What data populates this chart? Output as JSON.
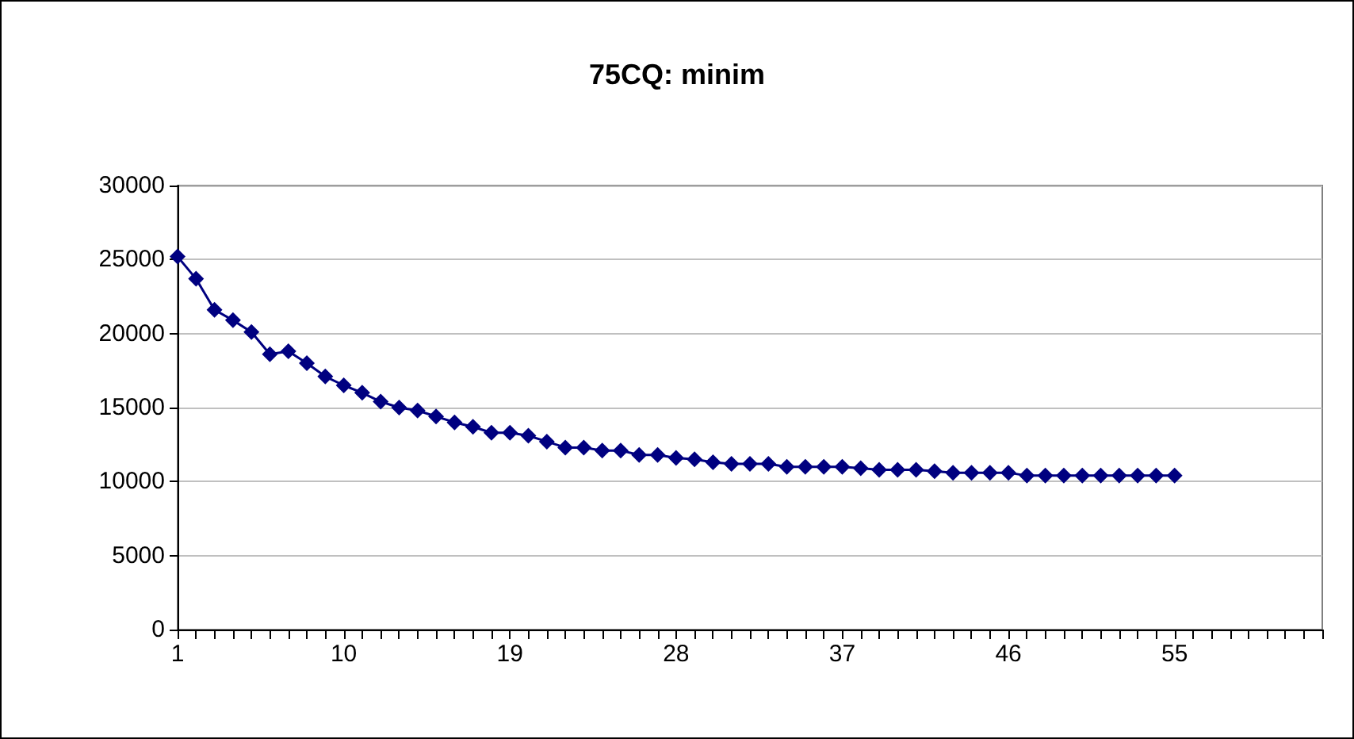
{
  "chart_data": {
    "type": "line",
    "title": "75CQ: minim",
    "categories": [
      "1",
      null,
      null,
      null,
      null,
      null,
      null,
      null,
      null,
      "10",
      null,
      null,
      null,
      null,
      null,
      null,
      null,
      null,
      "19",
      null,
      null,
      null,
      null,
      null,
      null,
      null,
      null,
      "28",
      null,
      null,
      null,
      null,
      null,
      null,
      null,
      null,
      "37",
      null,
      null,
      null,
      null,
      null,
      null,
      null,
      null,
      "46",
      null,
      null,
      null,
      null,
      null,
      null,
      null,
      null,
      "55",
      null,
      null,
      null,
      null,
      null,
      null,
      null,
      null
    ],
    "series": [
      {
        "color": "#000080",
        "values": [
          25200,
          23700,
          21600,
          20900,
          20100,
          18600,
          18800,
          18000,
          17100,
          16500,
          16000,
          15400,
          15000,
          14800,
          14400,
          14000,
          13700,
          13300,
          13300,
          13100,
          12700,
          12300,
          12300,
          12100,
          12100,
          11800,
          11800,
          11600,
          11500,
          11300,
          11200,
          11200,
          11200,
          11000,
          11000,
          11000,
          11000,
          10900,
          10800,
          10800,
          10800,
          10700,
          10600,
          10600,
          10600,
          10600,
          10400,
          10400,
          10400,
          10400,
          10400,
          10400,
          10400,
          10400,
          10400,
          null,
          null,
          null,
          null,
          null,
          null,
          null,
          null
        ]
      }
    ],
    "ylim": [
      0,
      30000
    ],
    "yticks": [
      0,
      5000,
      10000,
      15000,
      20000,
      25000,
      30000
    ],
    "grid": "y",
    "marker": "diamond",
    "line_style": "solid"
  }
}
